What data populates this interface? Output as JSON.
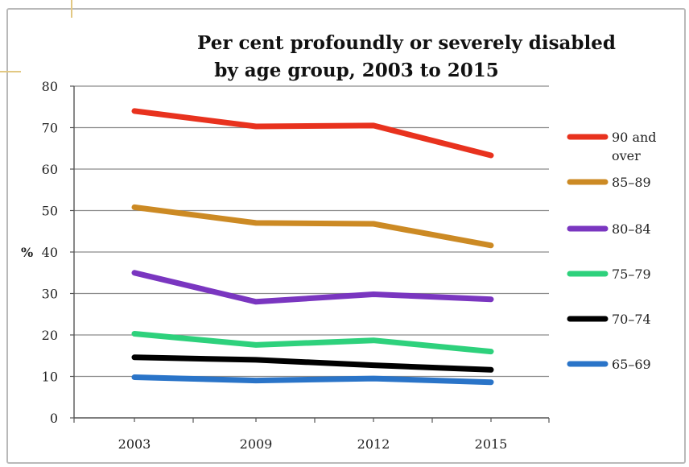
{
  "chart_data": {
    "type": "line",
    "title_line1": "Per cent profoundly or severely disabled",
    "title_line2": "by age group, 2003 to 2015",
    "ylabel": "%",
    "categories": [
      "2003",
      "2009",
      "2012",
      "2015"
    ],
    "ylim": [
      0,
      80
    ],
    "yticks": [
      0,
      10,
      20,
      30,
      40,
      50,
      60,
      70,
      80
    ],
    "grid": true,
    "legend_position": "right",
    "series": [
      {
        "name_lines": [
          "90 and",
          "over"
        ],
        "color": "#e8321e",
        "values": [
          74,
          70.3,
          70.5,
          63.3
        ]
      },
      {
        "name_lines": [
          "85–89"
        ],
        "color": "#cc8a24",
        "values": [
          50.8,
          47,
          46.8,
          41.6
        ]
      },
      {
        "name_lines": [
          "80–84"
        ],
        "color": "#7a36c0",
        "values": [
          35,
          28,
          29.8,
          28.6
        ]
      },
      {
        "name_lines": [
          "75–79"
        ],
        "color": "#2ed17c",
        "values": [
          20.3,
          17.6,
          18.7,
          16
        ]
      },
      {
        "name_lines": [
          "70–74"
        ],
        "color": "#000000",
        "values": [
          14.6,
          14,
          12.7,
          11.6
        ]
      },
      {
        "name_lines": [
          "65–69"
        ],
        "color": "#2a74c8",
        "values": [
          9.8,
          9,
          9.5,
          8.6
        ]
      }
    ]
  }
}
